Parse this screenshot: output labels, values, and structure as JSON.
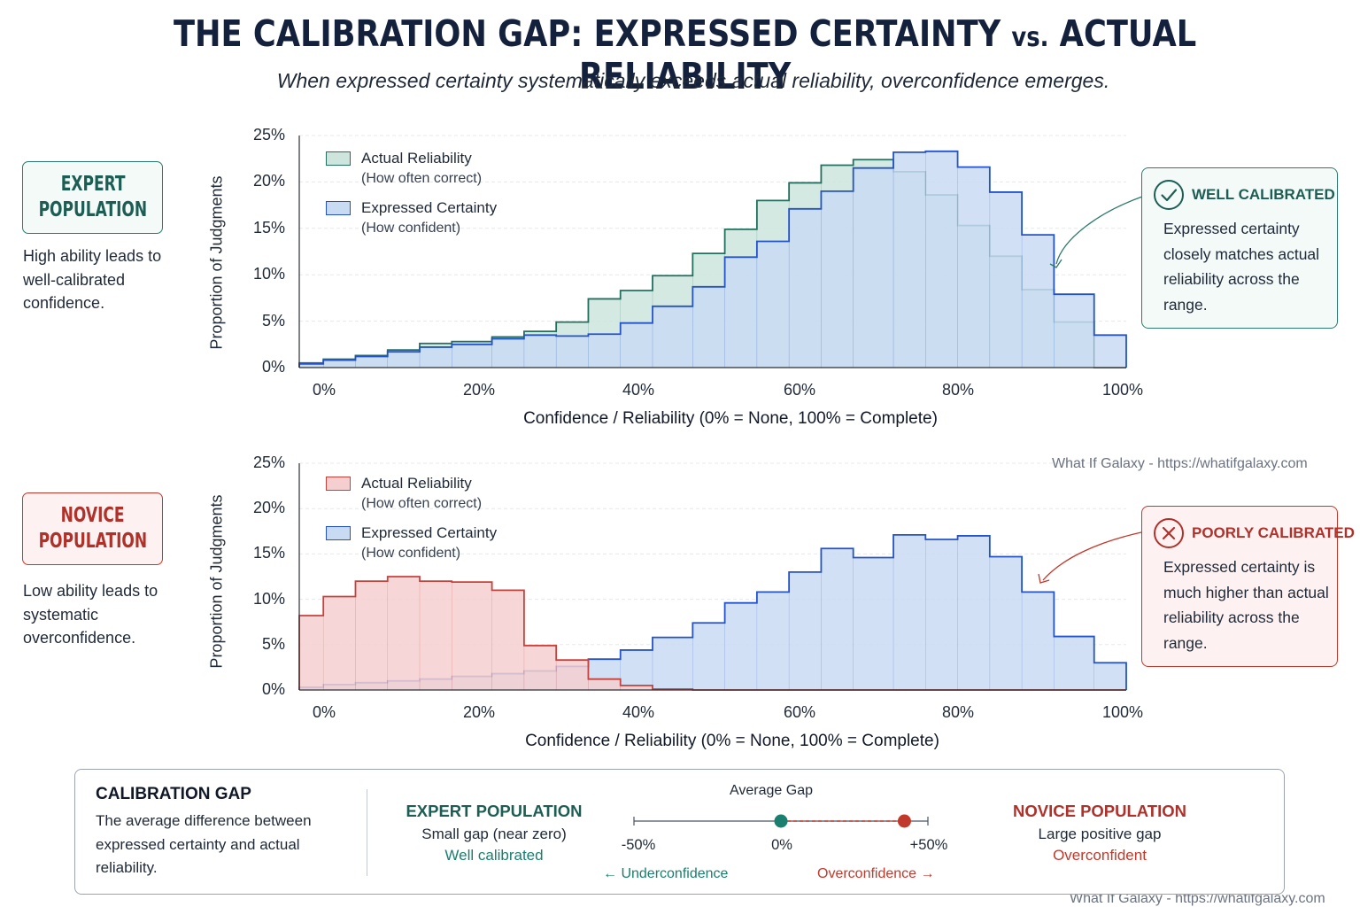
{
  "title_main": "THE CALIBRATION GAP: EXPRESSED CERTAINTY ",
  "title_vs": "vs.",
  "title_end": " ACTUAL RELIABILITY",
  "subtitle": "When expressed certainty systematically exceeds actual reliability, overconfidence emerges.",
  "watermark": "What If Galaxy - https://whatifgalaxy.com",
  "expert": {
    "box_title_1": "EXPERT",
    "box_title_2": "POPULATION",
    "description": "High ability leads to well-calibrated confidence.",
    "callout_title": "WELL CALIBRATED",
    "callout_desc": "Expressed certainty closely matches actual reliability across the range.",
    "colors": {
      "accent": "#2c7a6d",
      "reliability_fill": "#cde5dd",
      "reliability_line": "#23705f"
    }
  },
  "novice": {
    "box_title_1": "NOVICE",
    "box_title_2": "POPULATION",
    "description": "Low ability leads to systematic overconfidence.",
    "callout_title": "POORLY CALIBRATED",
    "callout_desc": "Expressed certainty is much higher than actual reliability across the range.",
    "colors": {
      "accent": "#c0392b",
      "reliability_fill": "#f5cfcf",
      "reliability_line": "#c8423c"
    }
  },
  "certainty_colors": {
    "fill": "#c9daf3",
    "line": "#2453c9"
  },
  "chart_data": [
    {
      "type": "histogram",
      "population": "EXPERT POPULATION",
      "xlabel": "Confidence / Reliability (0% = None, 100% = Complete)",
      "ylabel": "Proportion of Judgments",
      "xlim": [
        -3,
        100
      ],
      "ylim": [
        0,
        25
      ],
      "x_ticks": [
        "0%",
        "20%",
        "40%",
        "60%",
        "80%",
        "100%"
      ],
      "y_ticks": [
        "0%",
        "5%",
        "10%",
        "15%",
        "20%",
        "25%"
      ],
      "bin_edges": [
        -3,
        0,
        4,
        8,
        12,
        16,
        21,
        25,
        29,
        33,
        37,
        41,
        46,
        50,
        54,
        58,
        62,
        66,
        71,
        75,
        79,
        83,
        87,
        91,
        96,
        100
      ],
      "grid": true,
      "legend": "top-left",
      "series": [
        {
          "name": "Actual Reliability",
          "sub": "(How often correct)",
          "values": [
            0.5,
            0.9,
            1.3,
            1.9,
            2.6,
            2.8,
            3.3,
            3.9,
            4.9,
            7.4,
            8.3,
            9.9,
            12.3,
            14.9,
            18.0,
            19.9,
            21.8,
            22.4,
            21.1,
            18.6,
            15.3,
            12.0,
            8.4,
            4.9,
            0
          ]
        },
        {
          "name": "Expressed Certainty",
          "sub": "(How confident)",
          "values": [
            0.4,
            0.8,
            1.2,
            1.7,
            2.2,
            2.5,
            3.1,
            3.5,
            3.4,
            3.6,
            4.8,
            6.6,
            8.7,
            11.9,
            13.6,
            17.1,
            19.0,
            21.5,
            23.2,
            23.3,
            21.6,
            18.9,
            14.3,
            7.9,
            3.5
          ]
        }
      ]
    },
    {
      "type": "histogram",
      "population": "NOVICE POPULATION",
      "xlabel": "Confidence / Reliability (0% = None, 100% = Complete)",
      "ylabel": "Proportion of Judgments",
      "xlim": [
        -3,
        100
      ],
      "ylim": [
        0,
        25
      ],
      "x_ticks": [
        "0%",
        "20%",
        "40%",
        "60%",
        "80%",
        "100%"
      ],
      "y_ticks": [
        "0%",
        "5%",
        "10%",
        "15%",
        "20%",
        "25%"
      ],
      "bin_edges": [
        -3,
        0,
        4,
        8,
        12,
        16,
        21,
        25,
        29,
        33,
        37,
        41,
        46,
        50,
        54,
        58,
        62,
        66,
        71,
        75,
        79,
        83,
        87,
        91,
        96,
        100
      ],
      "grid": true,
      "legend": "top-left",
      "series": [
        {
          "name": "Actual Reliability",
          "sub": "(How often correct)",
          "values": [
            8.2,
            10.3,
            12.0,
            12.5,
            12.0,
            11.9,
            11.0,
            4.9,
            3.3,
            1.2,
            0.5,
            0.1,
            0,
            0,
            0,
            0,
            0,
            0,
            0,
            0,
            0,
            0,
            0,
            0,
            0
          ]
        },
        {
          "name": "Expressed Certainty",
          "sub": "(How confident)",
          "values": [
            0.3,
            0.6,
            0.8,
            1.0,
            1.2,
            1.5,
            1.8,
            2.1,
            2.6,
            3.4,
            4.4,
            5.8,
            7.4,
            9.6,
            10.8,
            13.0,
            15.6,
            14.6,
            17.1,
            16.6,
            17.0,
            14.7,
            10.8,
            5.9,
            3.0
          ]
        }
      ]
    },
    {
      "type": "scatter",
      "title": "Average Gap",
      "xlim": [
        -50,
        50
      ],
      "x_ticks": [
        "-50%",
        "0%",
        "+50%"
      ],
      "points": [
        {
          "name": "EXPERT POPULATION",
          "x": 0,
          "color": "#1a7f6e"
        },
        {
          "name": "NOVICE POPULATION",
          "x": 42,
          "color": "#c0392b"
        }
      ]
    }
  ],
  "gap_panel": {
    "title": "CALIBRATION GAP",
    "description": "The average difference between expressed certainty and actual reliability.",
    "expert_heading": "EXPERT POPULATION",
    "expert_line1": "Small gap (near zero)",
    "expert_line2": "Well calibrated",
    "novice_heading": "NOVICE POPULATION",
    "novice_line1": "Large positive gap",
    "novice_line2": "Overconfident",
    "under_label": "← Underconfidence",
    "over_label": "Overconfidence →"
  }
}
